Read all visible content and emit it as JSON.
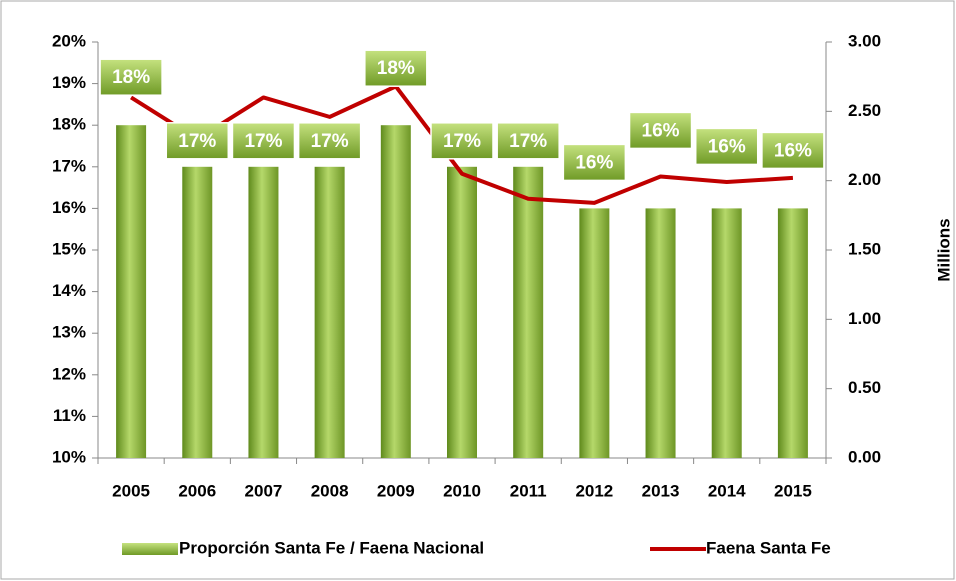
{
  "chart_data": {
    "type": "bar",
    "categories": [
      "2005",
      "2006",
      "2007",
      "2008",
      "2009",
      "2010",
      "2011",
      "2012",
      "2013",
      "2014",
      "2015"
    ],
    "series": [
      {
        "name": "Proporción Santa Fe / Faena Nacional",
        "type": "bar",
        "color": "#7fa632",
        "values": [
          18,
          17,
          17,
          17,
          18,
          17,
          17,
          16,
          16,
          16,
          16
        ],
        "value_labels": [
          "18%",
          "17%",
          "17%",
          "17%",
          "18%",
          "17%",
          "17%",
          "16%",
          "16%",
          "16%",
          "16%"
        ]
      },
      {
        "name": "Faena Santa Fe",
        "type": "line",
        "axis": "y2",
        "color": "#c00000",
        "values": [
          2.6,
          2.3,
          2.6,
          2.46,
          2.68,
          2.05,
          1.87,
          1.84,
          2.03,
          1.99,
          2.02
        ]
      }
    ],
    "ylim": [
      10,
      20
    ],
    "yticks": [
      {
        "value": 10,
        "label": "10%"
      },
      {
        "value": 11,
        "label": "11%"
      },
      {
        "value": 12,
        "label": "12%"
      },
      {
        "value": 13,
        "label": "13%"
      },
      {
        "value": 14,
        "label": "14%"
      },
      {
        "value": 15,
        "label": "15%"
      },
      {
        "value": 16,
        "label": "16%"
      },
      {
        "value": 17,
        "label": "17%"
      },
      {
        "value": 18,
        "label": "18%"
      },
      {
        "value": 19,
        "label": "19%"
      },
      {
        "value": 20,
        "label": "20%"
      }
    ],
    "y2lim": [
      0,
      3
    ],
    "y2ticks": [
      {
        "value": 0,
        "label": "0.00"
      },
      {
        "value": 0.5,
        "label": "0.50"
      },
      {
        "value": 1,
        "label": "1.00"
      },
      {
        "value": 1.5,
        "label": "1.50"
      },
      {
        "value": 2,
        "label": "2.00"
      },
      {
        "value": 2.5,
        "label": "2.50"
      },
      {
        "value": 3,
        "label": "3.00"
      }
    ],
    "y2label": "Millions",
    "legend": "bottom"
  }
}
